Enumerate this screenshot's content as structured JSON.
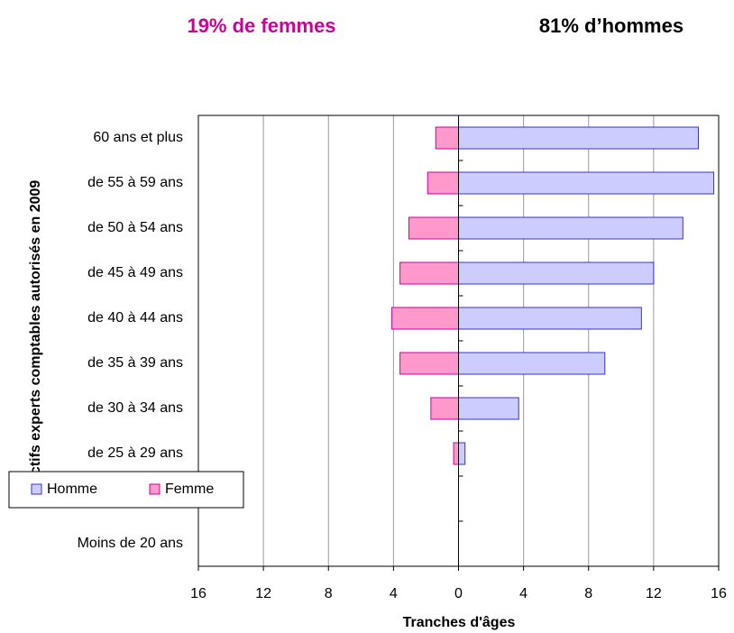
{
  "chart_data": {
    "type": "bar",
    "orientation": "horizontal",
    "title_left": "19% de femmes",
    "title_right": "81% d’hommes",
    "x_label": "Tranches d'âges",
    "y_label": "Effectifs experts comptables autorisés en 2009",
    "categories": [
      "60 ans et plus",
      "de 55 à 59 ans",
      "de 50 à 54 ans",
      "de 45 à 49 ans",
      "de 40 à 44 ans",
      "de 35 à 39 ans",
      "de 30 à 34 ans",
      "de 25 à 29 ans",
      null,
      "Moins de 20 ans"
    ],
    "series": [
      {
        "name": "Homme",
        "color": "#ccccff",
        "edge": "#3333cc",
        "values": [
          14.75,
          15.7,
          13.8,
          12.0,
          11.25,
          9.0,
          3.7,
          0.4,
          0,
          0
        ]
      },
      {
        "name": "Femme",
        "color": "#ff99cc",
        "edge": "#cc0099",
        "values": [
          -1.4,
          -1.9,
          -3.05,
          -3.6,
          -4.1,
          -3.6,
          -1.7,
          -0.3,
          0,
          0
        ]
      }
    ],
    "xlim": [
      -16,
      16
    ],
    "xticks": [
      {
        "value": -16,
        "label": "16"
      },
      {
        "value": -12,
        "label": "12"
      },
      {
        "value": -8,
        "label": "8"
      },
      {
        "value": -4,
        "label": "4"
      },
      0,
      4,
      8,
      12,
      16
    ],
    "grid": true,
    "legend": "left"
  }
}
